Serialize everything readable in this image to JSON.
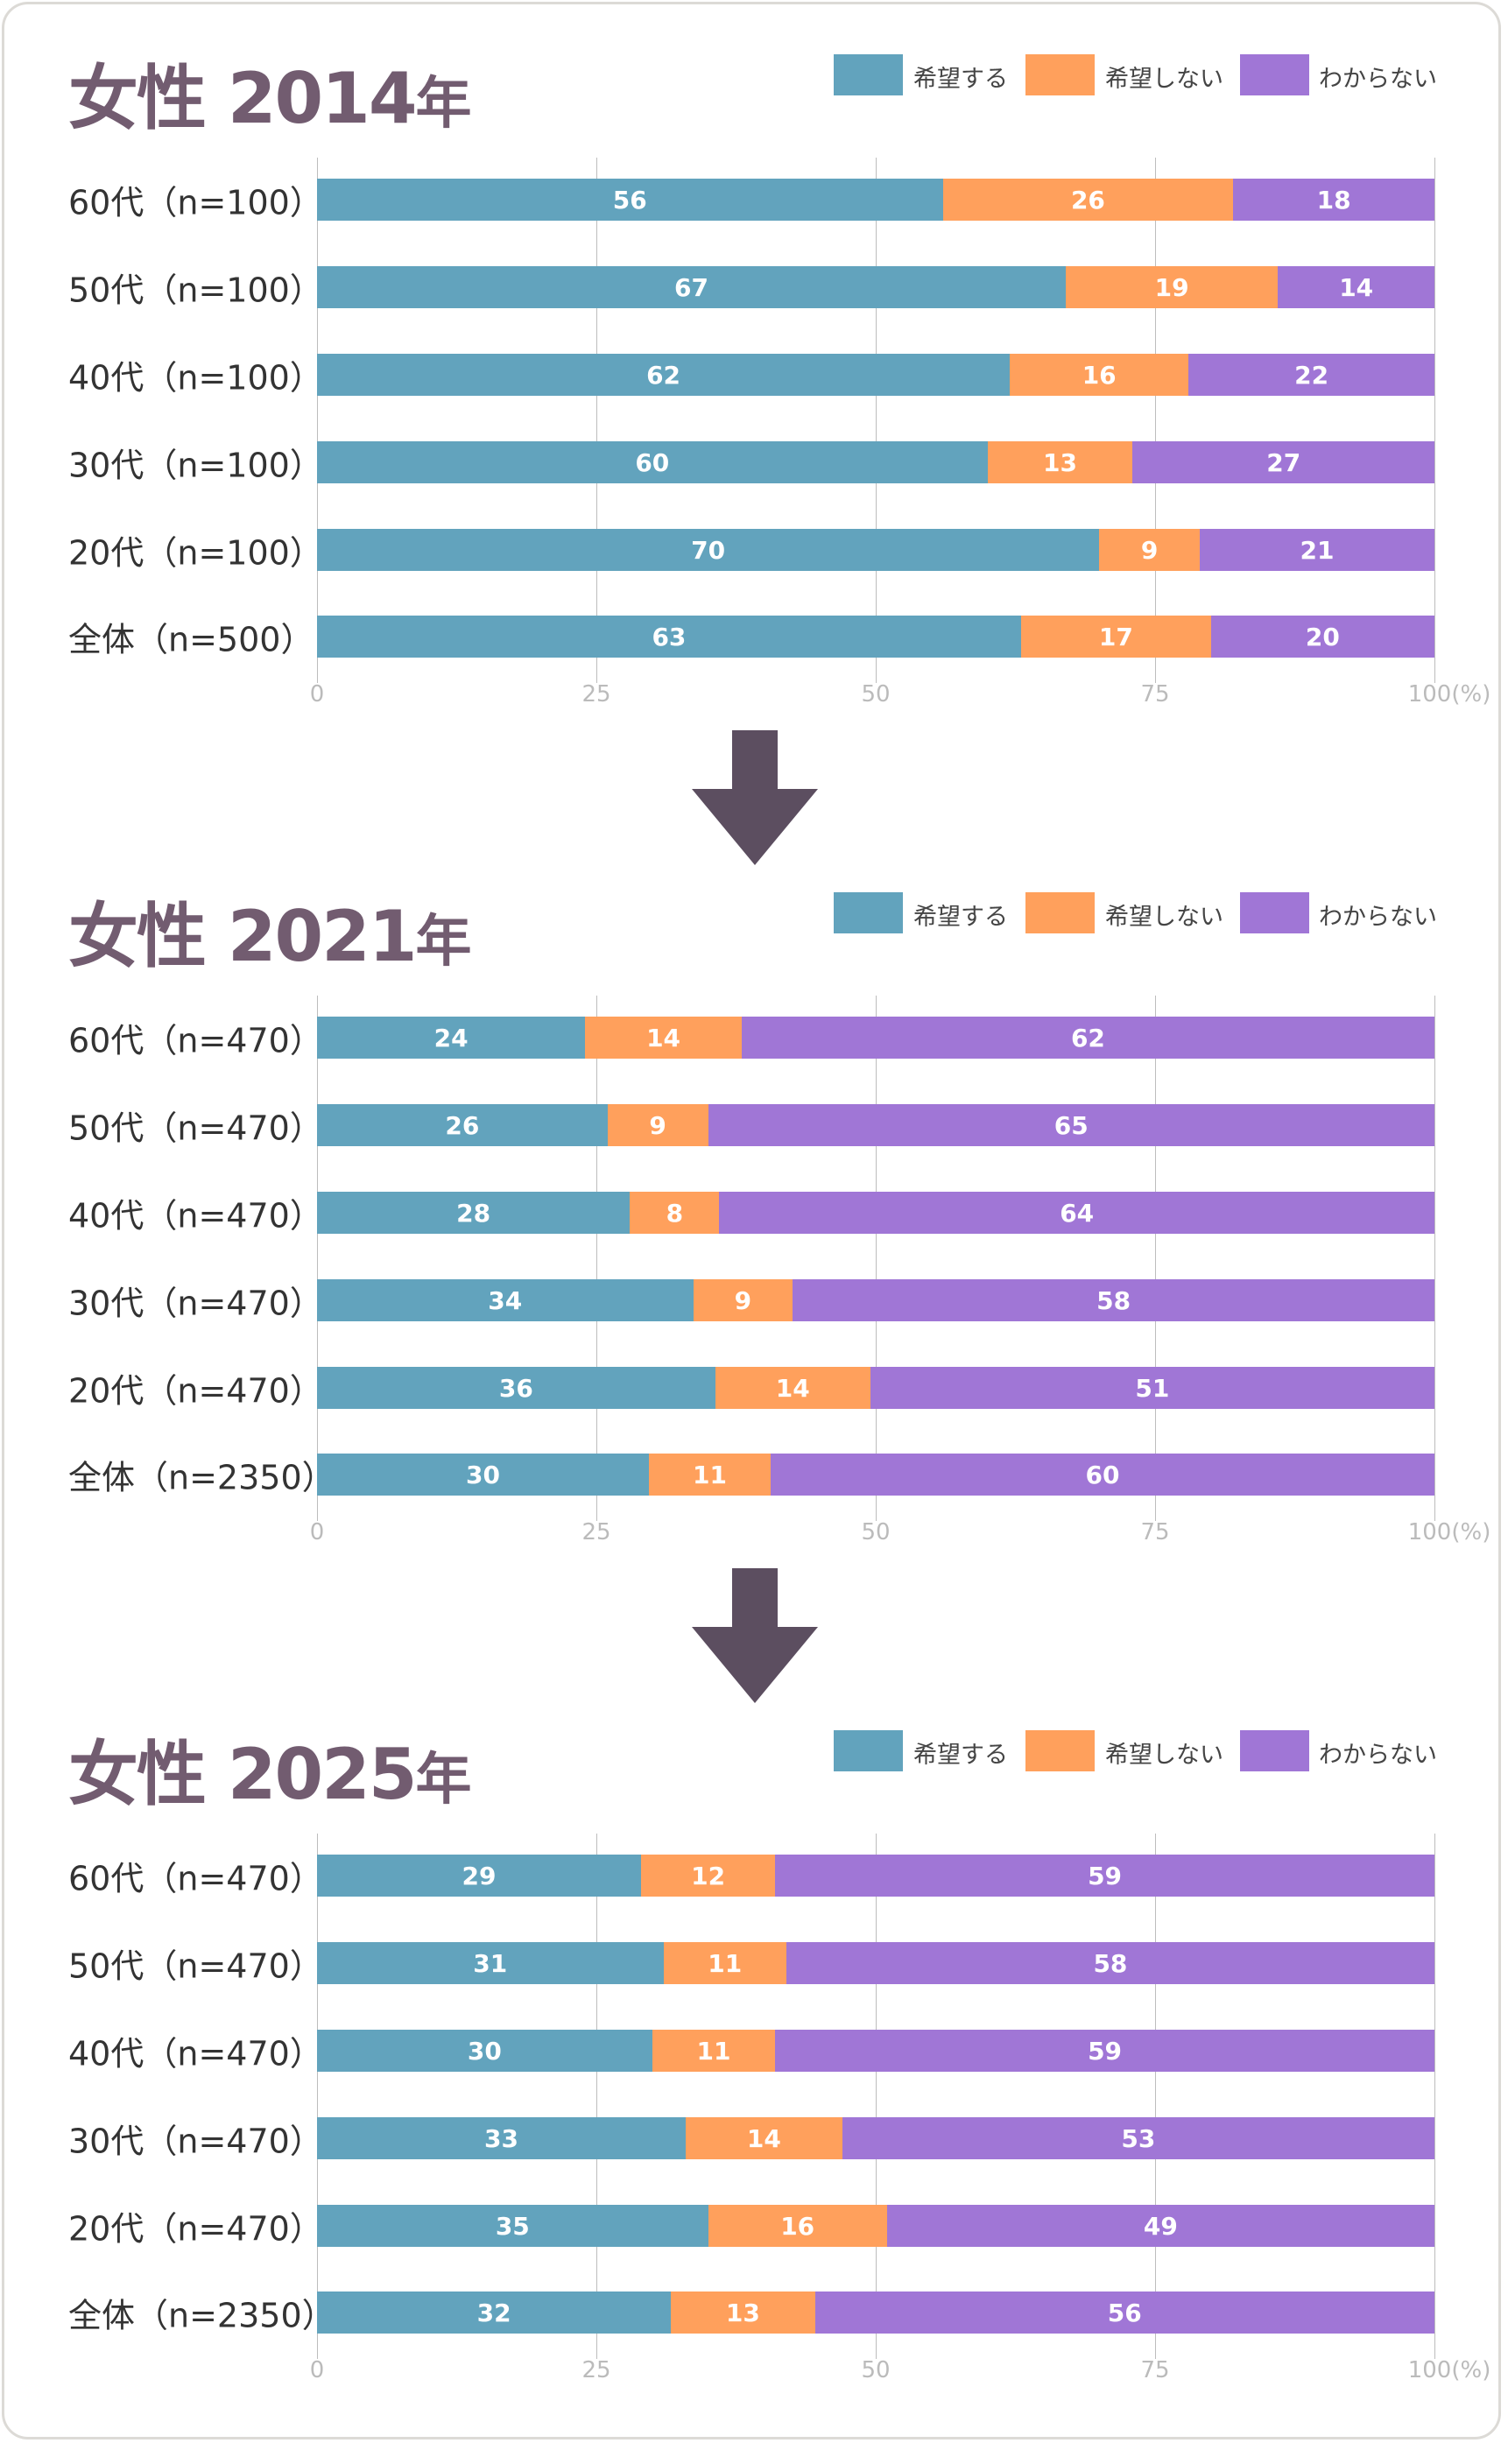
{
  "legend": [
    "希望する",
    "希望しない",
    "わからない"
  ],
  "colors": {
    "hope": "#62a3bd",
    "nohope": "#ffa05c",
    "unknown": "#a076d6",
    "title": "#725c70",
    "arrow": "#5c4e60"
  },
  "axis_unit": "(%)",
  "chart_data": [
    {
      "type": "bar",
      "orientation": "horizontal",
      "stacked": true,
      "title_main": "女性 2014",
      "title_suffix": "年",
      "xlim": [
        0,
        100
      ],
      "xticks": [
        "0",
        "25",
        "50",
        "75",
        "100"
      ],
      "grid": true,
      "legend_position": "top-right",
      "categories": [
        "60代（n=100）",
        "50代（n=100）",
        "40代（n=100）",
        "30代（n=100）",
        "20代（n=100）",
        "全体（n=500）"
      ],
      "series": [
        {
          "name": "希望する",
          "values": [
            56,
            67,
            62,
            60,
            70,
            63
          ]
        },
        {
          "name": "希望しない",
          "values": [
            26,
            19,
            16,
            13,
            9,
            17
          ]
        },
        {
          "name": "わからない",
          "values": [
            18,
            14,
            22,
            27,
            21,
            20
          ]
        }
      ]
    },
    {
      "type": "bar",
      "orientation": "horizontal",
      "stacked": true,
      "title_main": "女性 2021",
      "title_suffix": "年",
      "xlim": [
        0,
        100
      ],
      "xticks": [
        "0",
        "25",
        "50",
        "75",
        "100"
      ],
      "grid": true,
      "legend_position": "top-right",
      "categories": [
        "60代（n=470）",
        "50代（n=470）",
        "40代（n=470）",
        "30代（n=470）",
        "20代（n=470）",
        "全体（n=2350）"
      ],
      "series": [
        {
          "name": "希望する",
          "values": [
            24,
            26,
            28,
            34,
            36,
            30
          ]
        },
        {
          "name": "希望しない",
          "values": [
            14,
            9,
            8,
            9,
            14,
            11
          ]
        },
        {
          "name": "わからない",
          "values": [
            62,
            65,
            64,
            58,
            51,
            60
          ]
        }
      ]
    },
    {
      "type": "bar",
      "orientation": "horizontal",
      "stacked": true,
      "title_main": "女性 2025",
      "title_suffix": "年",
      "xlim": [
        0,
        100
      ],
      "xticks": [
        "0",
        "25",
        "50",
        "75",
        "100"
      ],
      "grid": true,
      "legend_position": "top-right",
      "categories": [
        "60代（n=470）",
        "50代（n=470）",
        "40代（n=470）",
        "30代（n=470）",
        "20代（n=470）",
        "全体（n=2350）"
      ],
      "series": [
        {
          "name": "希望する",
          "values": [
            29,
            31,
            30,
            33,
            35,
            32
          ]
        },
        {
          "name": "希望しない",
          "values": [
            12,
            11,
            11,
            14,
            16,
            13
          ]
        },
        {
          "name": "わからない",
          "values": [
            59,
            58,
            59,
            53,
            49,
            56
          ]
        }
      ]
    }
  ]
}
